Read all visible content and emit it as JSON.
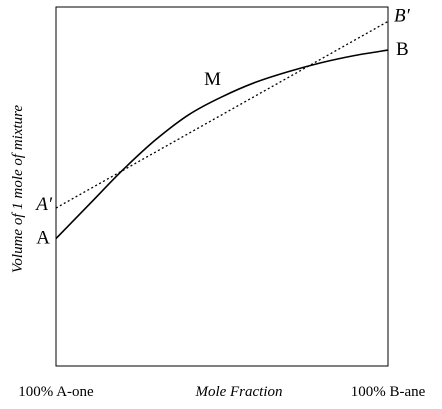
{
  "chart_data": {
    "type": "line",
    "title": "",
    "xlabel": "Mole Fraction",
    "ylabel": "Volume of 1 mole of mixture",
    "x_tick_labels": [
      "100% A-one",
      "100% B-ane"
    ],
    "xlim": [
      0,
      1
    ],
    "ylim": [
      0,
      1
    ],
    "grid": false,
    "series": [
      {
        "style": "solid",
        "x": [
          0,
          0.1,
          0.2,
          0.3,
          0.4,
          0.5,
          0.6,
          0.7,
          0.8,
          0.9,
          1
        ],
        "y": [
          0.355,
          0.45,
          0.545,
          0.63,
          0.7,
          0.75,
          0.79,
          0.82,
          0.845,
          0.865,
          0.88
        ]
      },
      {
        "style": "dotted",
        "x": [
          0,
          1
        ],
        "y": [
          0.44,
          0.96
        ]
      }
    ],
    "annotations": [
      {
        "text": "A",
        "x": 0,
        "y": 0.355,
        "italic": false
      },
      {
        "text": "B",
        "x": 1,
        "y": 0.88,
        "italic": false
      },
      {
        "text": "M",
        "x": 0.5,
        "y": 0.75,
        "italic": false
      },
      {
        "text": "A′",
        "x": 0,
        "y": 0.44,
        "italic": true
      },
      {
        "text": "B′",
        "x": 1,
        "y": 0.96,
        "italic": true
      }
    ]
  }
}
